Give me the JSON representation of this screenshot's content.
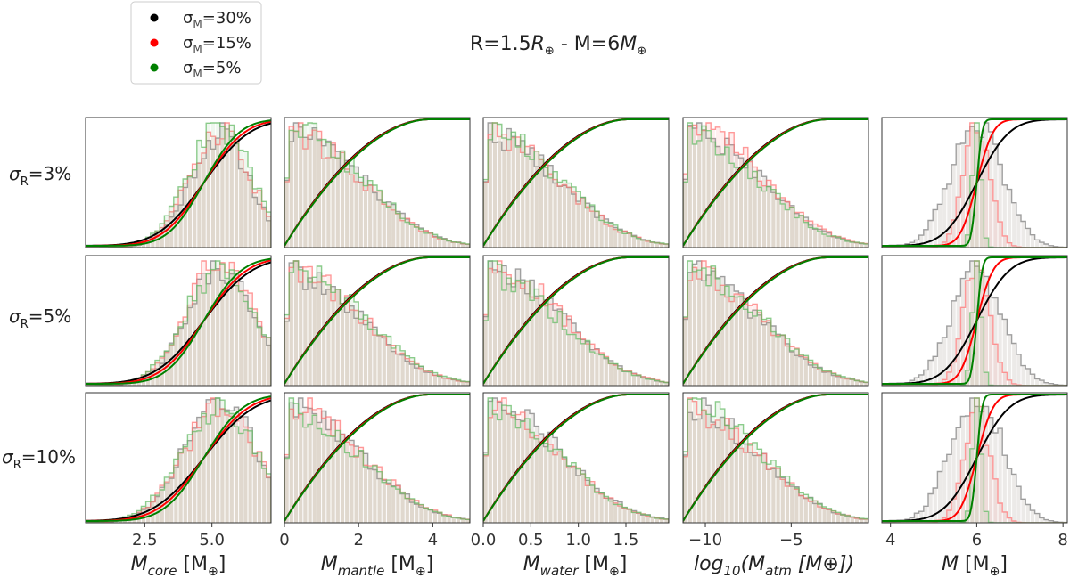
{
  "title_parts": {
    "r_label": "R=1.5",
    "r_unit": "R",
    "separator": "-",
    "m_label": "M=6",
    "m_unit": "M",
    "earth_symbol": "⊕"
  },
  "legend": [
    {
      "sym": "σ",
      "sub": "M",
      "rest": "=30%",
      "color": "#000000"
    },
    {
      "sym": "σ",
      "sub": "M",
      "rest": "=15%",
      "color": "#ff0000"
    },
    {
      "sym": "σ",
      "sub": "M",
      "rest": "=5%",
      "color": "#008000"
    }
  ],
  "row_labels": [
    {
      "sym": "σ",
      "sub": "R",
      "rest": "=3%"
    },
    {
      "sym": "σ",
      "sub": "R",
      "rest": "=5%"
    },
    {
      "sym": "σ",
      "sub": "R",
      "rest": "=10%"
    }
  ],
  "chart_data": {
    "type": "histogram-cdf-grid",
    "title": "R=1.5R⊕ - M=6M⊕",
    "series_colors": {
      "sigma_M_30": "#000000",
      "sigma_M_15": "#ff0000",
      "sigma_M_5": "#008000"
    },
    "columns": [
      {
        "key": "core",
        "xlabel": {
          "main": "M",
          "sub": "core",
          "tail": " [M",
          "tail_sub": "⊕",
          "end": "]"
        },
        "xlim": [
          0.3,
          7.2
        ],
        "ticks": [
          2.5,
          5.0
        ],
        "tick_labels": [
          "2.5",
          "5.0"
        ],
        "dist": "peak",
        "center": 5.3,
        "spread": 1.1
      },
      {
        "key": "mantle",
        "xlabel": {
          "main": "M",
          "sub": "mantle",
          "tail": " [M",
          "tail_sub": "⊕",
          "end": "]"
        },
        "xlim": [
          0,
          5.0
        ],
        "ticks": [
          0,
          2,
          4
        ],
        "tick_labels": [
          "0",
          "2",
          "4"
        ],
        "dist": "decay",
        "center": 0.0,
        "spread": 4.0
      },
      {
        "key": "water",
        "xlabel": {
          "main": "M",
          "sub": "water",
          "tail": " [M",
          "tail_sub": "⊕",
          "end": "]"
        },
        "xlim": [
          0,
          1.95
        ],
        "ticks": [
          0.0,
          0.5,
          1.0,
          1.5
        ],
        "tick_labels": [
          "0.0",
          "0.5",
          "1.0",
          "1.5"
        ],
        "dist": "decay",
        "center": 0.0,
        "spread": 1.55
      },
      {
        "key": "atm",
        "xlabel": {
          "main": "log",
          "sub": "10",
          "tail": "(M",
          "tail_sub": "atm",
          "end": " [M⊕])"
        },
        "xlim": [
          -11.3,
          -0.5
        ],
        "ticks": [
          -10,
          -5
        ],
        "tick_labels": [
          "−10",
          "−5"
        ],
        "dist": "decay",
        "center": -11.3,
        "spread": 9.8
      },
      {
        "key": "mass",
        "xlabel": {
          "main": "M",
          "sub": "",
          "tail": " [M",
          "tail_sub": "⊕",
          "end": "]"
        },
        "xlim": [
          3.8,
          8.1
        ],
        "ticks": [
          4,
          6,
          8
        ],
        "tick_labels": [
          "4",
          "6",
          "8"
        ],
        "dist": "mass",
        "center": 6.0,
        "spread": 0
      }
    ],
    "rows": [
      {
        "sigma_R": "3%"
      },
      {
        "sigma_R": "5%"
      },
      {
        "sigma_R": "10%"
      }
    ],
    "sigma_M_series": [
      {
        "name": "σM=30%",
        "mass_sigma": 0.6
      },
      {
        "name": "σM=15%",
        "mass_sigma": 0.3
      },
      {
        "name": "σM=5%",
        "mass_sigma": 0.1
      }
    ]
  }
}
